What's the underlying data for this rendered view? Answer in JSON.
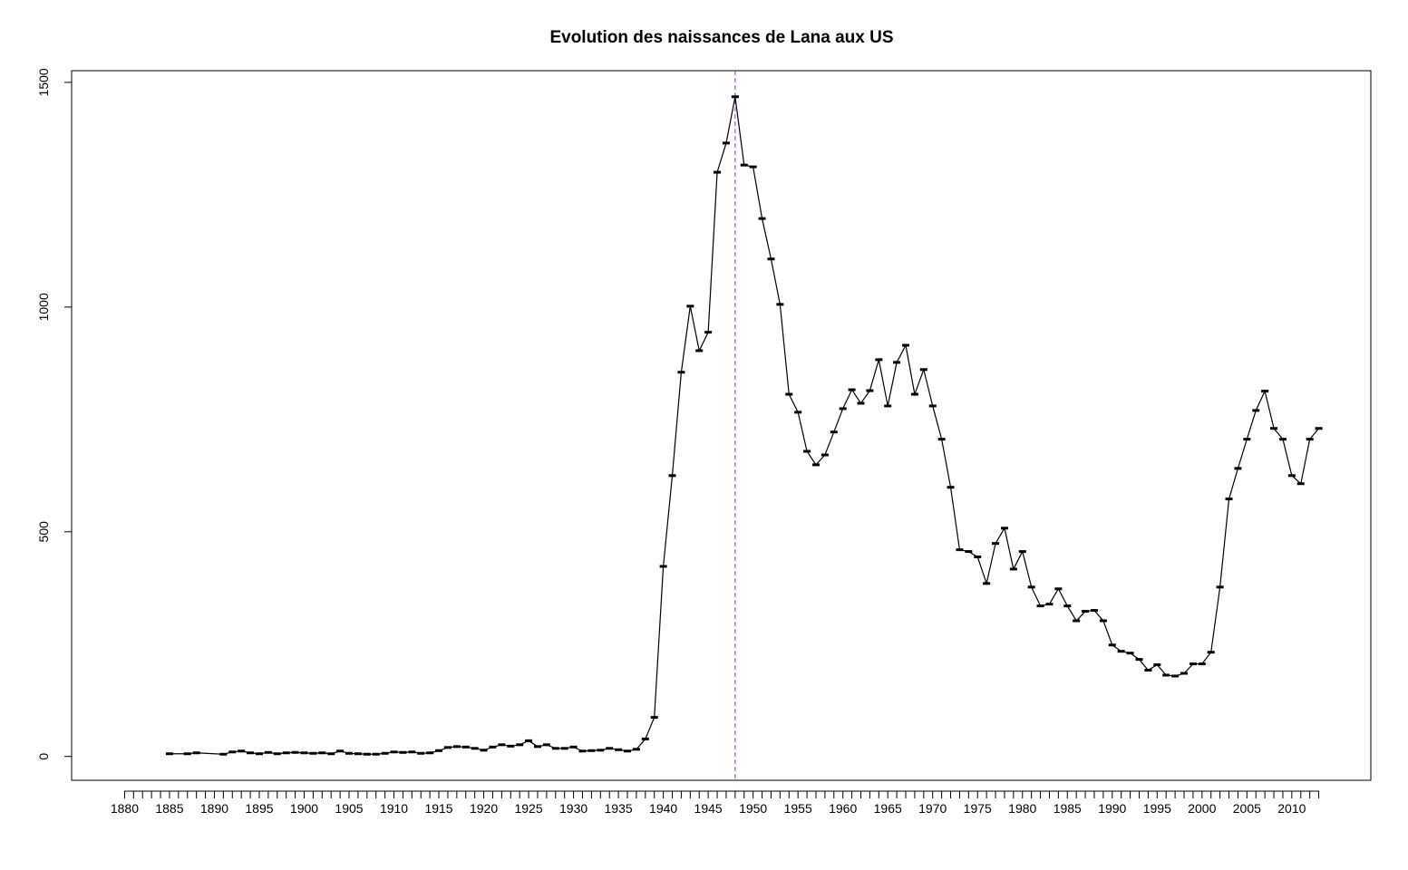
{
  "chart_data": {
    "type": "line",
    "title": "Evolution des naissances de Lana aux US",
    "x": [
      1885,
      1887,
      1888,
      1891,
      1892,
      1893,
      1894,
      1895,
      1896,
      1897,
      1898,
      1899,
      1900,
      1901,
      1902,
      1903,
      1904,
      1905,
      1906,
      1907,
      1908,
      1909,
      1910,
      1911,
      1912,
      1913,
      1914,
      1915,
      1916,
      1917,
      1918,
      1919,
      1920,
      1921,
      1922,
      1923,
      1924,
      1925,
      1926,
      1927,
      1928,
      1929,
      1930,
      1931,
      1932,
      1933,
      1934,
      1935,
      1936,
      1937,
      1938,
      1939,
      1940,
      1941,
      1942,
      1943,
      1944,
      1945,
      1946,
      1947,
      1948,
      1949,
      1950,
      1951,
      1952,
      1953,
      1954,
      1955,
      1956,
      1957,
      1958,
      1959,
      1960,
      1961,
      1962,
      1963,
      1964,
      1965,
      1966,
      1967,
      1968,
      1969,
      1970,
      1971,
      1972,
      1973,
      1974,
      1975,
      1976,
      1977,
      1978,
      1979,
      1980,
      1981,
      1982,
      1983,
      1984,
      1985,
      1986,
      1987,
      1988,
      1989,
      1990,
      1991,
      1992,
      1993,
      1994,
      1995,
      1996,
      1997,
      1998,
      1999,
      2000,
      2001,
      2002,
      2003,
      2004,
      2005,
      2006,
      2007,
      2008,
      2009,
      2010,
      2011,
      2012,
      2013
    ],
    "series": [
      {
        "color": "#000000",
        "values": [
          6,
          6,
          8,
          5,
          10,
          12,
          8,
          6,
          9,
          6,
          8,
          9,
          8,
          7,
          8,
          6,
          12,
          7,
          6,
          5,
          5,
          7,
          10,
          9,
          10,
          7,
          8,
          13,
          20,
          22,
          21,
          18,
          14,
          21,
          26,
          23,
          26,
          35,
          22,
          26,
          18,
          18,
          21,
          12,
          13,
          14,
          18,
          15,
          12,
          16,
          39,
          87,
          423,
          625,
          855,
          1002,
          903,
          944,
          1300,
          1365,
          1468,
          1316,
          1312,
          1197,
          1107,
          1006,
          806,
          766,
          679,
          649,
          671,
          722,
          774,
          816,
          786,
          814,
          883,
          780,
          877,
          915,
          806,
          861,
          780,
          706,
          599,
          460,
          456,
          444,
          385,
          474,
          508,
          417,
          456,
          377,
          335,
          339,
          373,
          335,
          302,
          323,
          325,
          302,
          248,
          234,
          230,
          216,
          192,
          204,
          181,
          179,
          185,
          206,
          206,
          232,
          377,
          573,
          641,
          706,
          770,
          813,
          730,
          706,
          625,
          607,
          706,
          730
        ]
      }
    ],
    "vline": {
      "x": 1948,
      "color": "#9933cc"
    },
    "xlim": [
      1874.1,
      2018.8
    ],
    "ylim": [
      -53,
      1526
    ],
    "xticks": [
      1880,
      1885,
      1890,
      1895,
      1900,
      1905,
      1910,
      1915,
      1920,
      1925,
      1930,
      1935,
      1940,
      1945,
      1950,
      1955,
      1960,
      1965,
      1970,
      1975,
      1980,
      1985,
      1990,
      1995,
      2000,
      2005,
      2010
    ],
    "xminorticks": [
      1881,
      1882,
      1883,
      1884,
      1886,
      1887,
      1888,
      1889,
      1891,
      1892,
      1893,
      1894,
      1896,
      1897,
      1898,
      1899,
      1901,
      1902,
      1903,
      1904,
      1906,
      1907,
      1908,
      1909,
      1911,
      1912,
      1913,
      1914,
      1916,
      1917,
      1918,
      1919,
      1921,
      1922,
      1923,
      1924,
      1926,
      1927,
      1928,
      1929,
      1931,
      1932,
      1933,
      1934,
      1936,
      1937,
      1938,
      1939,
      1941,
      1942,
      1943,
      1944,
      1946,
      1947,
      1948,
      1949,
      1951,
      1952,
      1953,
      1954,
      1956,
      1957,
      1958,
      1959,
      1961,
      1962,
      1963,
      1964,
      1966,
      1967,
      1968,
      1969,
      1971,
      1972,
      1973,
      1974,
      1976,
      1977,
      1978,
      1979,
      1981,
      1982,
      1983,
      1984,
      1986,
      1987,
      1988,
      1989,
      1991,
      1992,
      1993,
      1994,
      1996,
      1997,
      1998,
      1999,
      2001,
      2002,
      2003,
      2004,
      2006,
      2007,
      2008,
      2009,
      2011,
      2012,
      2013
    ],
    "yticks": [
      0,
      500,
      1000,
      1500
    ]
  }
}
